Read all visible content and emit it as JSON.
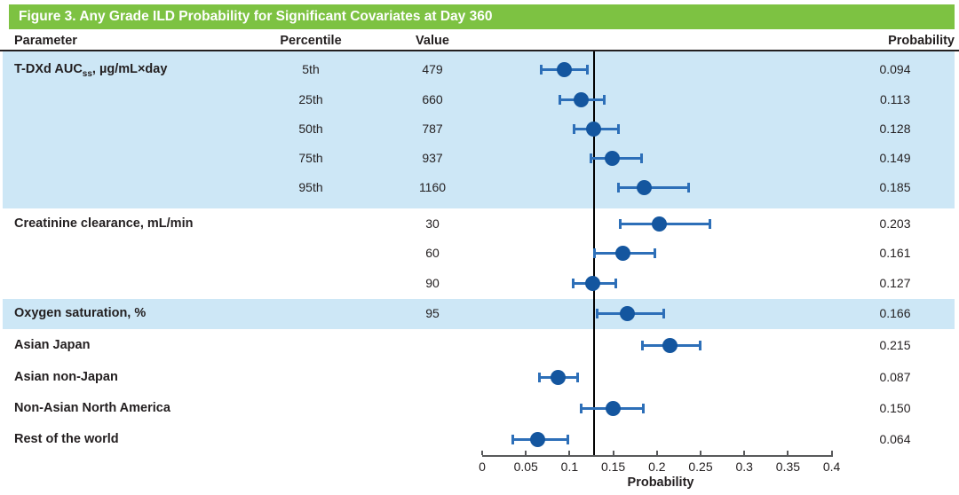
{
  "title": "Figure 3. Any Grade ILD Probability for Significant Covariates at Day 360",
  "columns": {
    "parameter": "Parameter",
    "percentile": "Percentile",
    "value": "Value",
    "probability": "Probability"
  },
  "colors": {
    "header_green": "#7dc242",
    "band_blue": "#cde7f6",
    "dot_blue": "#14569f",
    "errorbar_blue": "#2d6fb8",
    "text": "#231f20",
    "axis_gray": "#58595b",
    "reference_line": "#000000"
  },
  "rows": [
    {
      "parameter_main": "T-DXd AUC",
      "parameter_sub": "ss",
      "parameter_tail": ", µg/mL×day",
      "percentile": "5th",
      "value": "479",
      "probability": "0.094"
    },
    {
      "parameter": "",
      "percentile": "25th",
      "value": "660",
      "probability": "0.113"
    },
    {
      "parameter": "",
      "percentile": "50th",
      "value": "787",
      "probability": "0.128"
    },
    {
      "parameter": "",
      "percentile": "75th",
      "value": "937",
      "probability": "0.149"
    },
    {
      "parameter": "",
      "percentile": "95th",
      "value": "1160",
      "probability": "0.185"
    },
    {
      "parameter": "Creatinine clearance, mL/min",
      "percentile": "",
      "value": "30",
      "probability": "0.203"
    },
    {
      "parameter": "",
      "percentile": "",
      "value": "60",
      "probability": "0.161"
    },
    {
      "parameter": "",
      "percentile": "",
      "value": "90",
      "probability": "0.127"
    },
    {
      "parameter": "Oxygen saturation, %",
      "percentile": "",
      "value": "95",
      "probability": "0.166"
    },
    {
      "parameter": "Asian Japan",
      "percentile": "",
      "value": "",
      "probability": "0.215"
    },
    {
      "parameter": "Asian non-Japan",
      "percentile": "",
      "value": "",
      "probability": "0.087"
    },
    {
      "parameter": "Non-Asian North America",
      "percentile": "",
      "value": "",
      "probability": "0.150"
    },
    {
      "parameter": "Rest of the world",
      "percentile": "",
      "value": "",
      "probability": "0.064"
    }
  ],
  "chart_data": {
    "type": "scatter",
    "subtype": "forest-plot",
    "title": "Figure 3. Any Grade ILD Probability for Significant Covariates at Day 360",
    "xlabel": "Probability",
    "xlim": [
      0,
      0.4
    ],
    "x_ticks": [
      {
        "v": 0,
        "label": "0"
      },
      {
        "v": 0.05,
        "label": "0.05"
      },
      {
        "v": 0.1,
        "label": "0.1"
      },
      {
        "v": 0.15,
        "label": "0.15"
      },
      {
        "v": 0.2,
        "label": "0.2"
      },
      {
        "v": 0.25,
        "label": "0.25"
      },
      {
        "v": 0.3,
        "label": "0.3"
      },
      {
        "v": 0.35,
        "label": "0.35"
      },
      {
        "v": 0.4,
        "label": "0.4"
      }
    ],
    "reference_line_x": 0.128,
    "points": [
      {
        "label": "T-DXd AUCss 5th (479)",
        "est": 0.094,
        "lo": 0.068,
        "hi": 0.12
      },
      {
        "label": "T-DXd AUCss 25th (660)",
        "est": 0.113,
        "lo": 0.089,
        "hi": 0.14
      },
      {
        "label": "T-DXd AUCss 50th (787)",
        "est": 0.128,
        "lo": 0.105,
        "hi": 0.156
      },
      {
        "label": "T-DXd AUCss 75th (937)",
        "est": 0.149,
        "lo": 0.124,
        "hi": 0.182
      },
      {
        "label": "T-DXd AUCss 95th (1160)",
        "est": 0.185,
        "lo": 0.156,
        "hi": 0.236
      },
      {
        "label": "Creatinine clearance 30",
        "est": 0.203,
        "lo": 0.158,
        "hi": 0.261
      },
      {
        "label": "Creatinine clearance 60",
        "est": 0.161,
        "lo": 0.129,
        "hi": 0.198
      },
      {
        "label": "Creatinine clearance 90",
        "est": 0.127,
        "lo": 0.104,
        "hi": 0.153
      },
      {
        "label": "Oxygen saturation 95",
        "est": 0.166,
        "lo": 0.132,
        "hi": 0.208
      },
      {
        "label": "Asian Japan",
        "est": 0.215,
        "lo": 0.183,
        "hi": 0.249
      },
      {
        "label": "Asian non-Japan",
        "est": 0.087,
        "lo": 0.066,
        "hi": 0.109
      },
      {
        "label": "Non-Asian North America",
        "est": 0.15,
        "lo": 0.113,
        "hi": 0.184
      },
      {
        "label": "Rest of the world",
        "est": 0.064,
        "lo": 0.035,
        "hi": 0.098
      }
    ]
  }
}
